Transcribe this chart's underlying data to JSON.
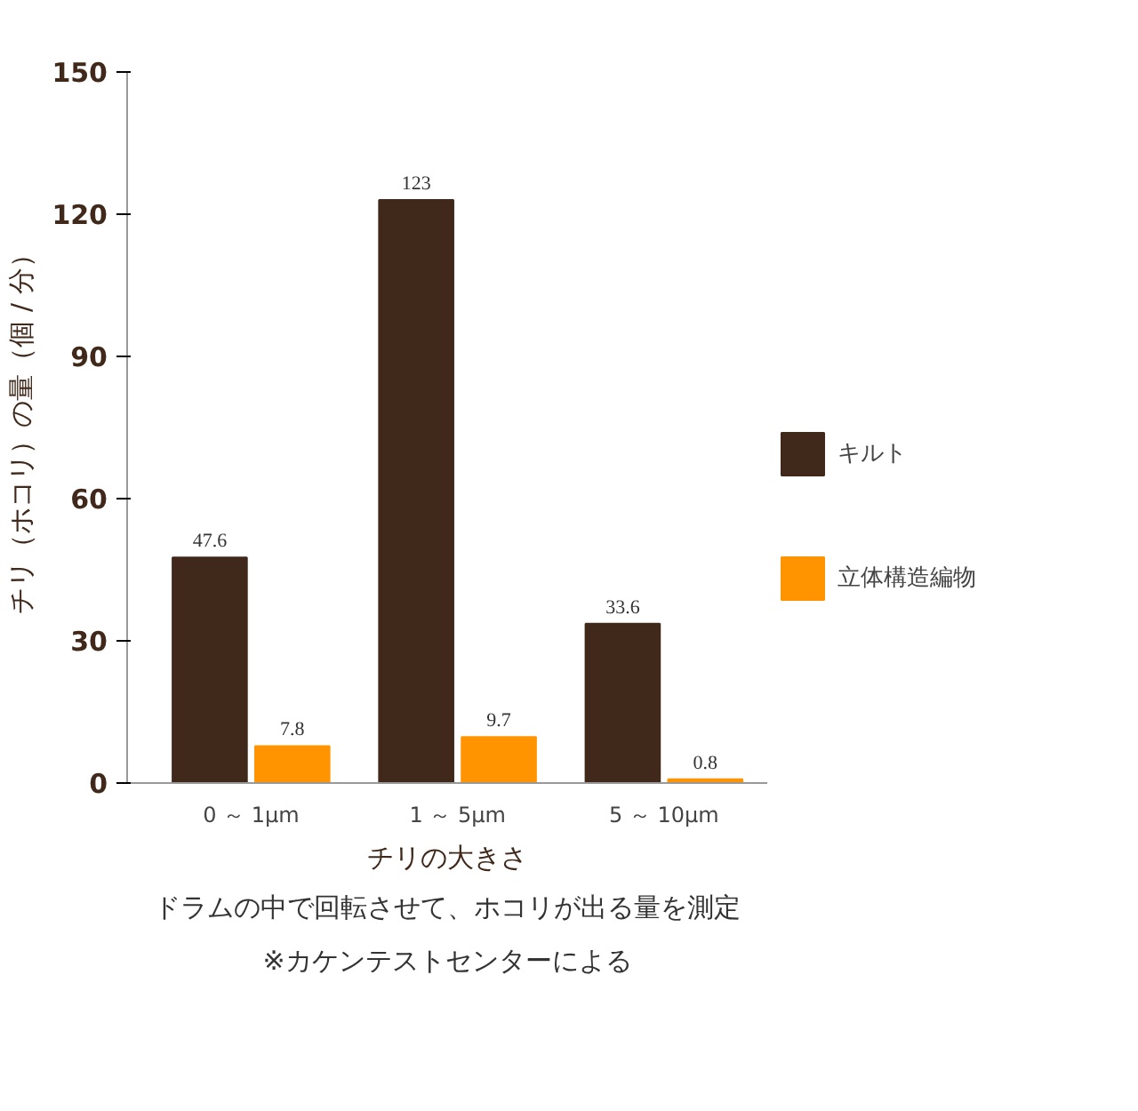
{
  "chart_data": {
    "type": "bar",
    "xlabel": "チリの大きさ",
    "ylabel": "チリ（ホコリ）の量（個 / 分）",
    "categories": [
      "0 ～ 1µm",
      "1 ～ 5µm",
      "5 ～ 10µm"
    ],
    "series": [
      {
        "name": "キルト",
        "color": "#40291a",
        "values": [
          47.6,
          123,
          33.6
        ]
      },
      {
        "name": "立体構造編物",
        "color": "#ff9400",
        "values": [
          7.8,
          9.7,
          0.8
        ]
      }
    ],
    "ylim": [
      0,
      150
    ],
    "yticks": [
      0,
      30,
      60,
      90,
      120,
      150
    ],
    "grid": false,
    "legend": "right",
    "data_labels": true,
    "annotations": [
      "ドラムの中で回転させて、ホコリが出る量を測定",
      "※カケンテストセンターによる"
    ]
  }
}
